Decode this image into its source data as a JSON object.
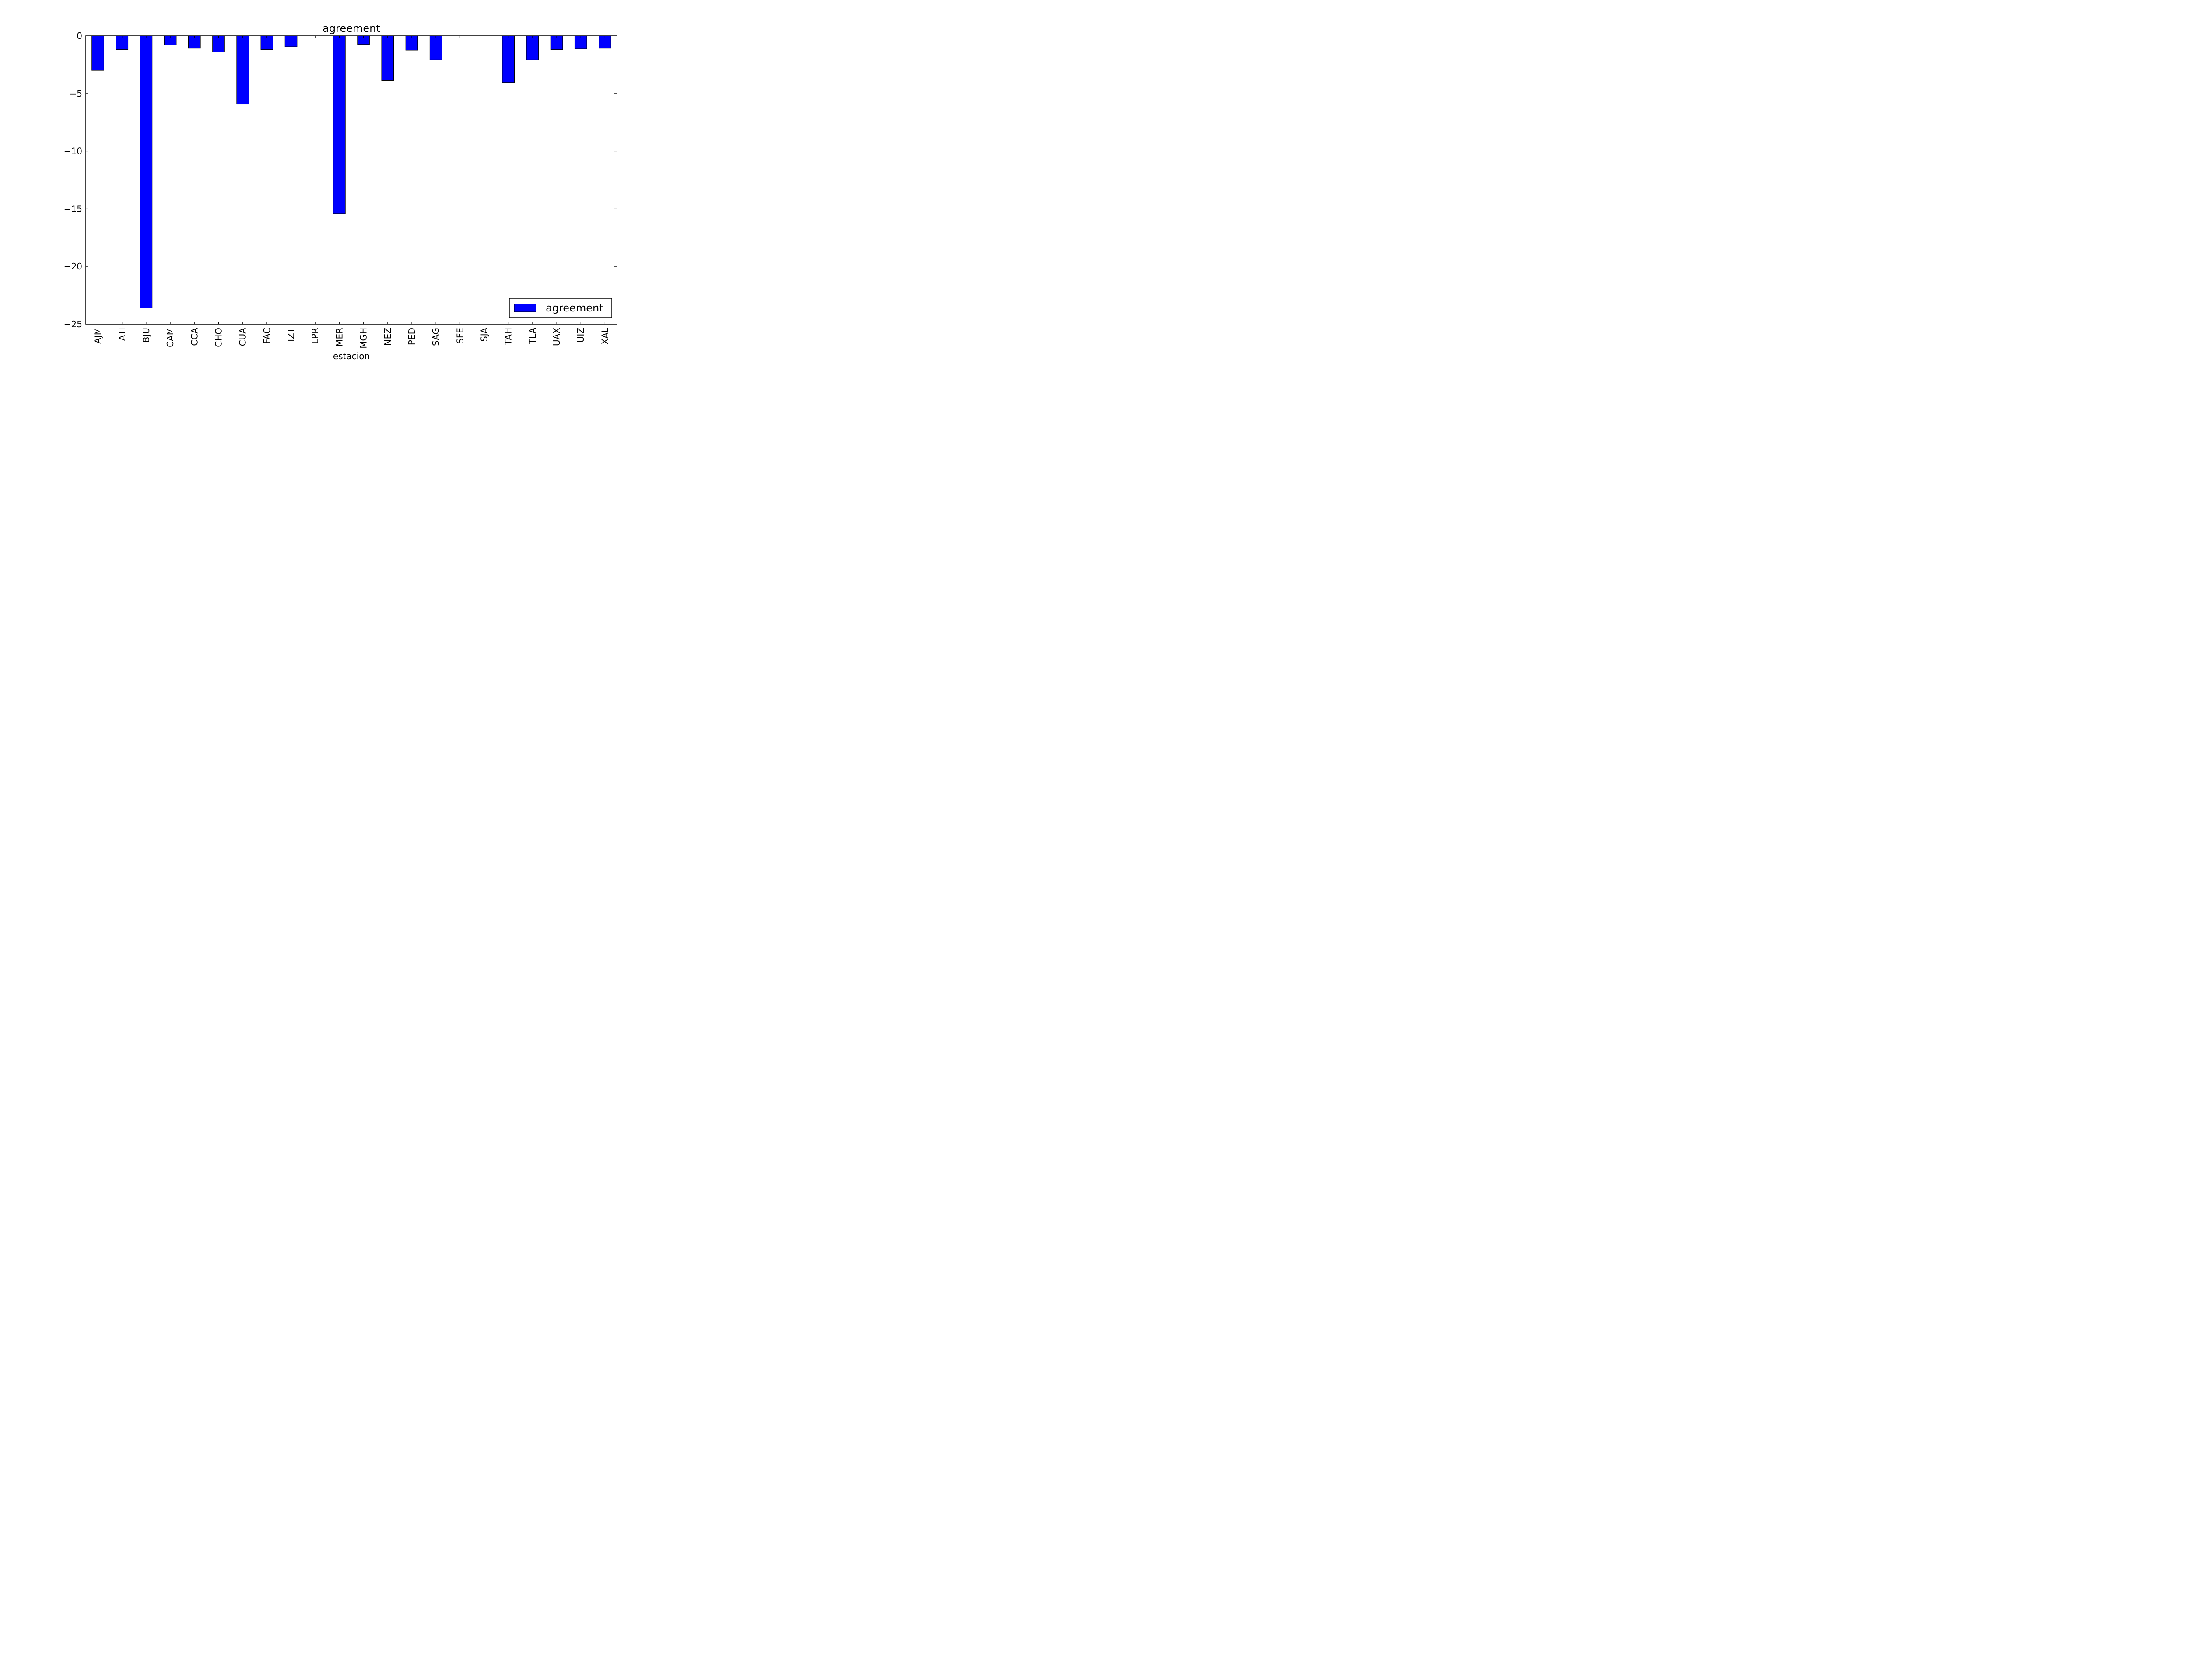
{
  "chart_data": {
    "type": "bar",
    "title": "agreement",
    "xlabel": "estacion",
    "ylabel": "",
    "ylim": [
      -25,
      0
    ],
    "yticks": [
      0,
      -5,
      -10,
      -15,
      -20,
      -25
    ],
    "ytick_labels": [
      "0",
      "−5",
      "−10",
      "−15",
      "−20",
      "−25"
    ],
    "grid": false,
    "legend_position": "lower-right",
    "categories": [
      "AJM",
      "ATI",
      "BJU",
      "CAM",
      "CCA",
      "CHO",
      "CUA",
      "FAC",
      "IZT",
      "LPR",
      "MER",
      "MGH",
      "NEZ",
      "PED",
      "SAG",
      "SFE",
      "SJA",
      "TAH",
      "TLA",
      "UAX",
      "UIZ",
      "XAL"
    ],
    "series": [
      {
        "name": "agreement",
        "color": "#0000ff",
        "values": [
          -3.0,
          -1.2,
          -23.6,
          -0.8,
          -1.05,
          -1.4,
          -5.9,
          -1.2,
          -0.95,
          0,
          -15.4,
          -0.75,
          -3.85,
          -1.25,
          -2.1,
          0,
          0,
          -4.05,
          -2.1,
          -1.2,
          -1.1,
          -1.05
        ]
      }
    ]
  }
}
